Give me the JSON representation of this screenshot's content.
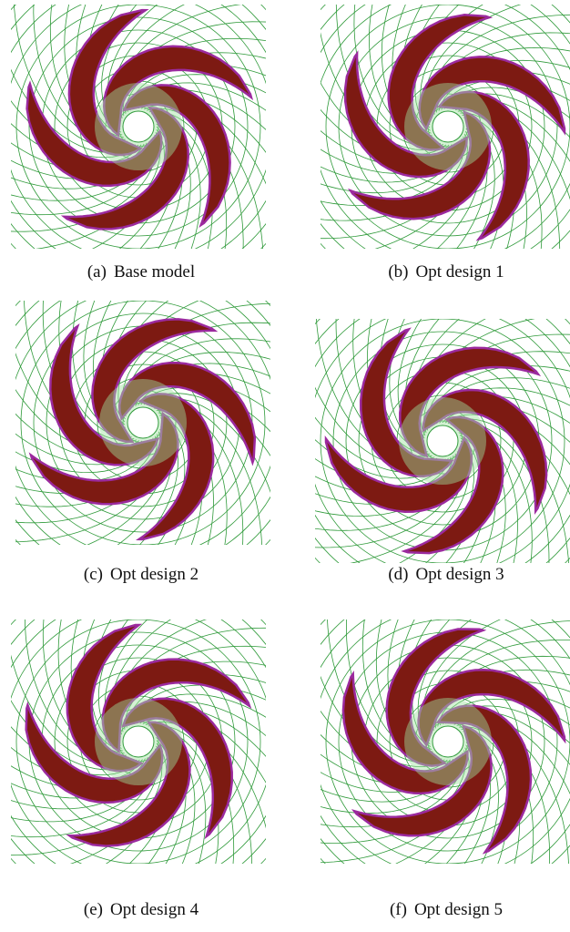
{
  "figure": {
    "panels": [
      {
        "label": "(a)",
        "caption": "Base model"
      },
      {
        "label": "(b)",
        "caption": "Opt design 1"
      },
      {
        "label": "(c)",
        "caption": "Opt design 2"
      },
      {
        "label": "(d)",
        "caption": "Opt design 3"
      },
      {
        "label": "(e)",
        "caption": "Opt design 4"
      },
      {
        "label": "(f)",
        "caption": "Opt design 5"
      }
    ]
  }
}
